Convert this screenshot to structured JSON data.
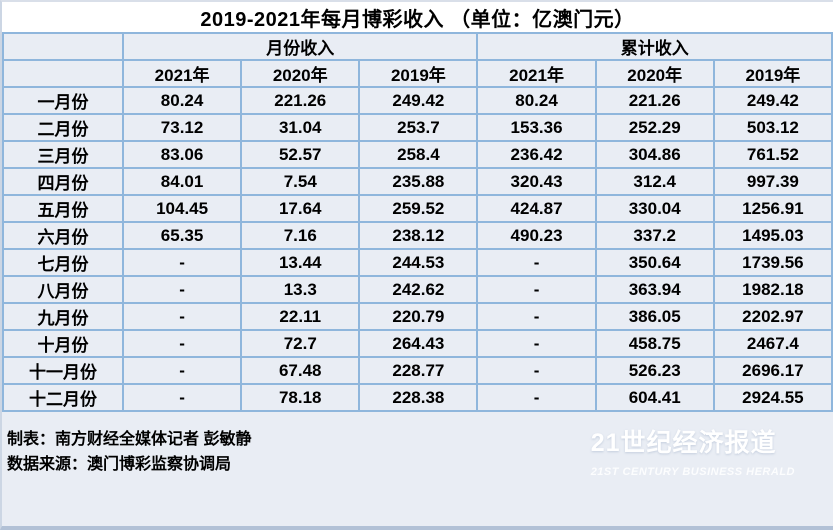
{
  "title": "2019-2021年每月博彩收入 （单位：亿澳门元）",
  "chart_data": {
    "type": "table",
    "title": "2019-2021年每月博彩收入 （单位：亿澳门元）",
    "unit": "亿澳门元",
    "group_headers": [
      "月份收入",
      "累计收入"
    ],
    "year_headers": [
      "2021年",
      "2020年",
      "2019年",
      "2021年",
      "2020年",
      "2019年"
    ],
    "rows": [
      {
        "month": "一月份",
        "values": [
          "80.24",
          "221.26",
          "249.42",
          "80.24",
          "221.26",
          "249.42"
        ]
      },
      {
        "month": "二月份",
        "values": [
          "73.12",
          "31.04",
          "253.7",
          "153.36",
          "252.29",
          "503.12"
        ]
      },
      {
        "month": "三月份",
        "values": [
          "83.06",
          "52.57",
          "258.4",
          "236.42",
          "304.86",
          "761.52"
        ]
      },
      {
        "month": "四月份",
        "values": [
          "84.01",
          "7.54",
          "235.88",
          "320.43",
          "312.4",
          "997.39"
        ]
      },
      {
        "month": "五月份",
        "values": [
          "104.45",
          "17.64",
          "259.52",
          "424.87",
          "330.04",
          "1256.91"
        ]
      },
      {
        "month": "六月份",
        "values": [
          "65.35",
          "7.16",
          "238.12",
          "490.23",
          "337.2",
          "1495.03"
        ]
      },
      {
        "month": "七月份",
        "values": [
          "-",
          "13.44",
          "244.53",
          "-",
          "350.64",
          "1739.56"
        ]
      },
      {
        "month": "八月份",
        "values": [
          "-",
          "13.3",
          "242.62",
          "-",
          "363.94",
          "1982.18"
        ]
      },
      {
        "month": "九月份",
        "values": [
          "-",
          "22.11",
          "220.79",
          "-",
          "386.05",
          "2202.97"
        ]
      },
      {
        "month": "十月份",
        "values": [
          "-",
          "72.7",
          "264.43",
          "-",
          "458.75",
          "2467.4"
        ]
      },
      {
        "month": "十一月份",
        "values": [
          "-",
          "67.48",
          "228.77",
          "-",
          "526.23",
          "2696.17"
        ]
      },
      {
        "month": "十二月份",
        "values": [
          "-",
          "78.18",
          "228.38",
          "-",
          "604.41",
          "2924.55"
        ]
      }
    ]
  },
  "footer": {
    "credit": "制表：南方财经全媒体记者 彭敏静",
    "source": "数据来源：澳门博彩监察协调局"
  },
  "watermark": {
    "cn": "21世纪经济报道",
    "en": "21ST CENTURY BUSINESS HERALD"
  },
  "colors": {
    "border": "#8fb6dc",
    "cell_bg": "#e9edf4",
    "title_bg": "#ffffff",
    "bottom_line": "#b2c1d6",
    "text": "#000000",
    "watermark": "#ffffff"
  }
}
